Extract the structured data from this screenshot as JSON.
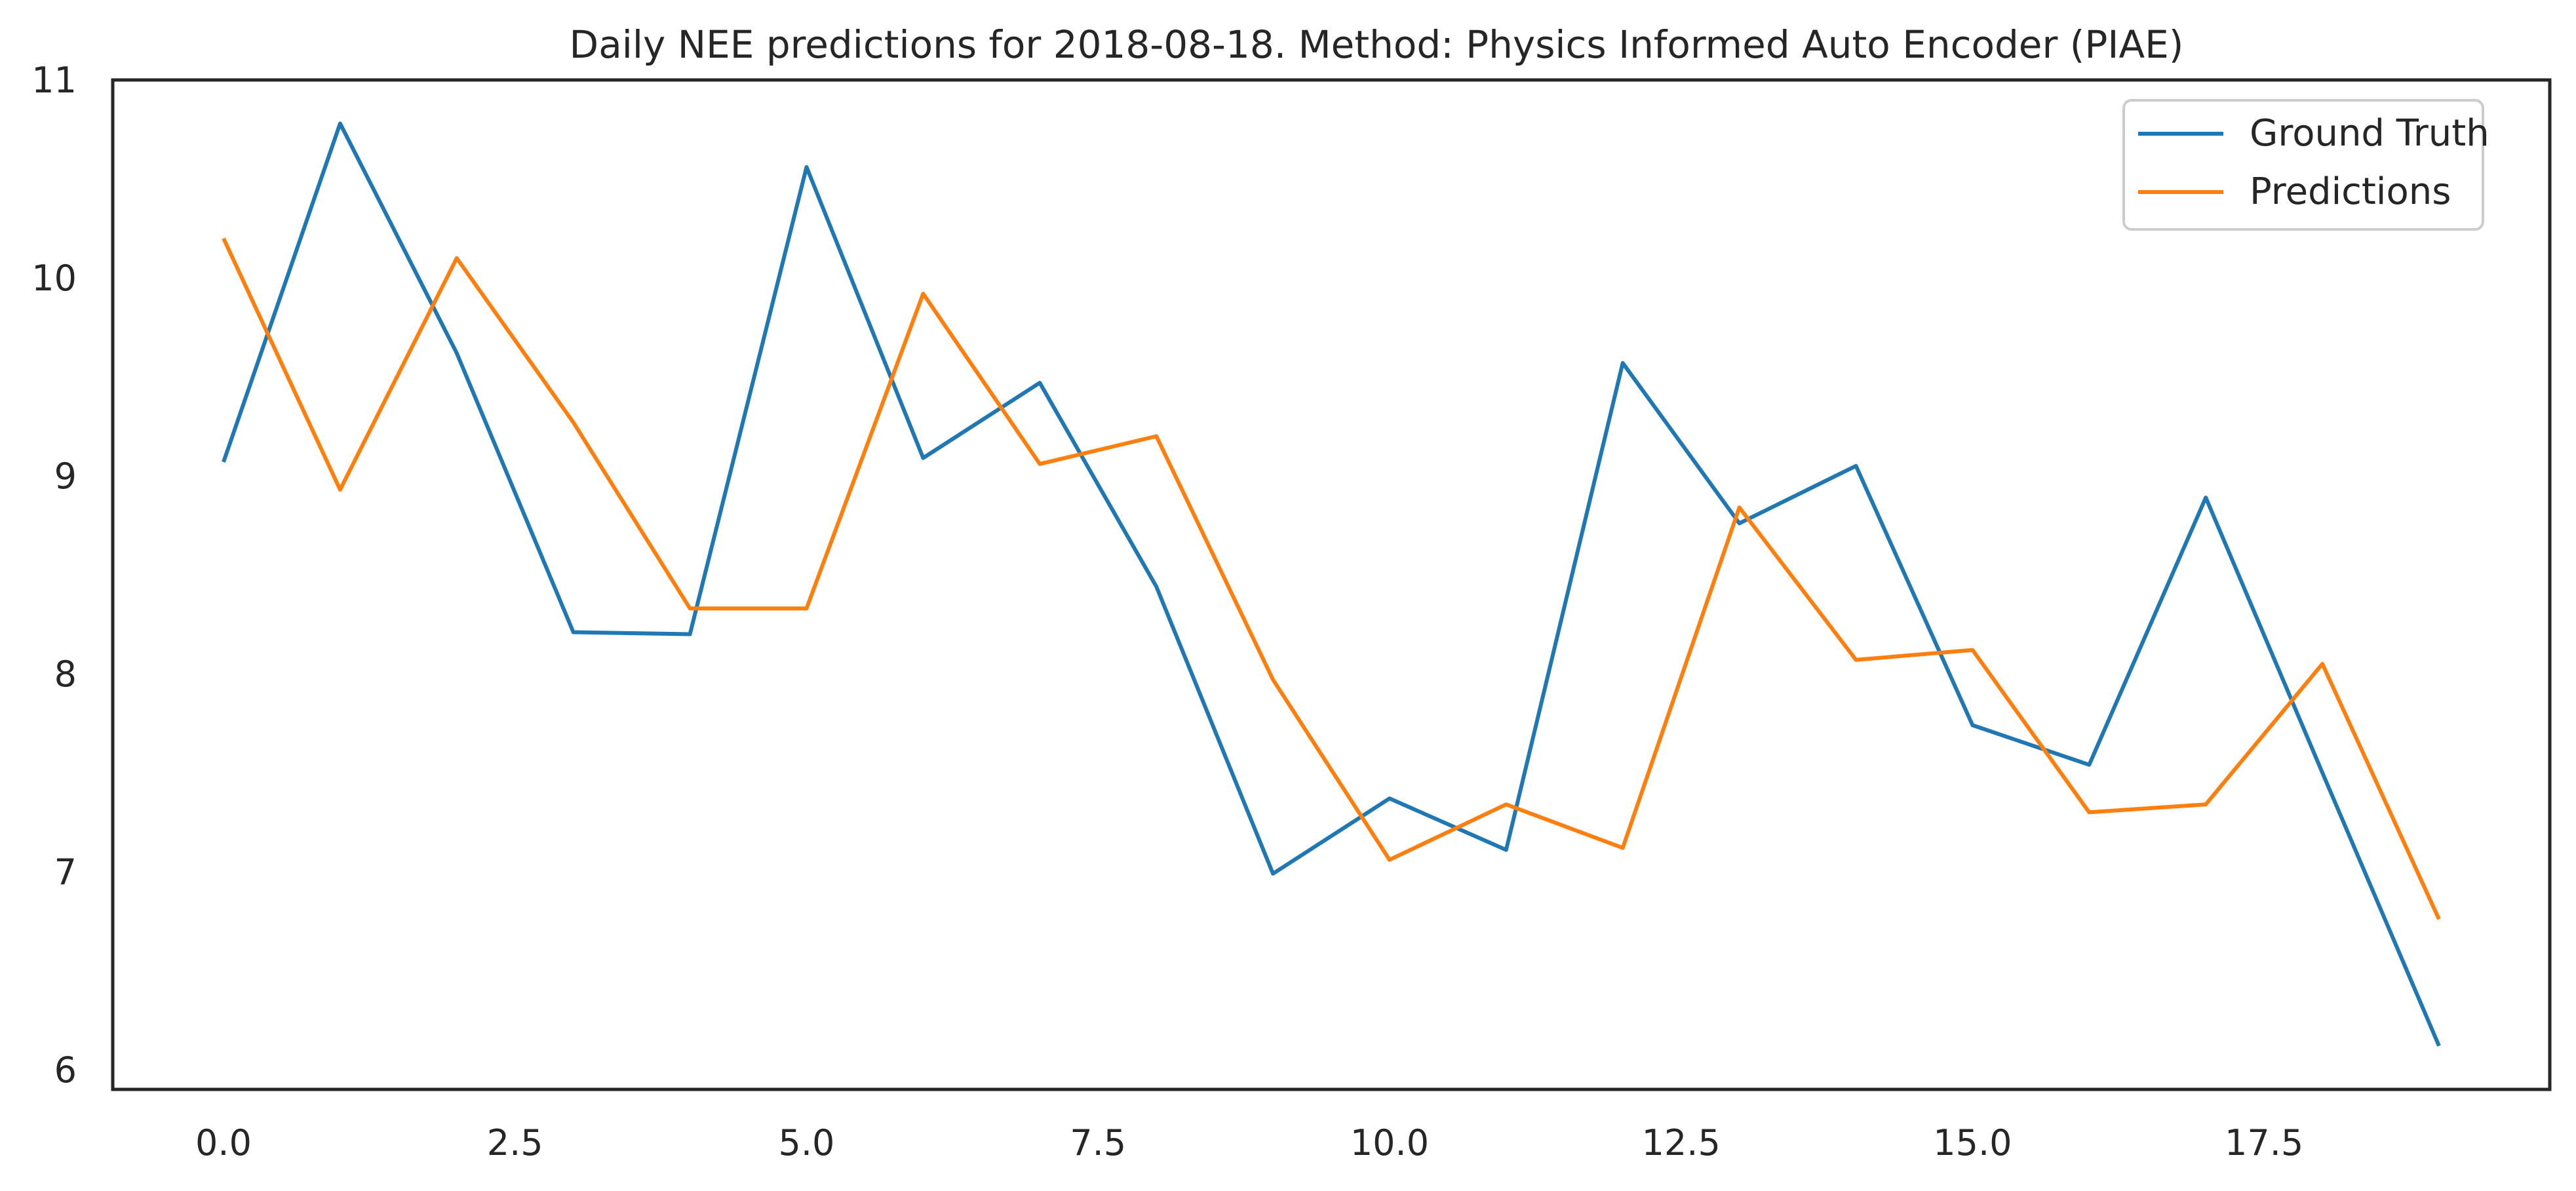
{
  "chart_data": {
    "type": "line",
    "title": "Daily NEE predictions for 2018-08-18. Method: Physics Informed Auto Encoder (PIAE)",
    "xlabel": "",
    "ylabel": "",
    "x": [
      0,
      1,
      2,
      3,
      4,
      5,
      6,
      7,
      8,
      9,
      10,
      11,
      12,
      13,
      14,
      15,
      16,
      17,
      18,
      19
    ],
    "xlim": [
      -0.95,
      19.95
    ],
    "ylim": [
      5.9,
      11.0
    ],
    "xticks": [
      0.0,
      2.5,
      5.0,
      7.5,
      10.0,
      12.5,
      15.0,
      17.5
    ],
    "xtick_labels": [
      "0.0",
      "2.5",
      "5.0",
      "7.5",
      "10.0",
      "12.5",
      "15.0",
      "17.5"
    ],
    "yticks": [
      6,
      7,
      8,
      9,
      10,
      11
    ],
    "ytick_labels": [
      "6",
      "7",
      "8",
      "9",
      "10",
      "11"
    ],
    "grid": false,
    "legend_position": "top-right",
    "series": [
      {
        "name": "Ground Truth",
        "color": "#1f77b4",
        "values": [
          9.07,
          10.78,
          9.62,
          8.21,
          8.2,
          10.56,
          9.09,
          9.47,
          8.44,
          6.99,
          7.37,
          7.11,
          9.57,
          8.76,
          9.05,
          7.74,
          7.54,
          8.89,
          7.5,
          6.12
        ]
      },
      {
        "name": "Predictions",
        "color": "#ff7f0e",
        "values": [
          10.2,
          8.93,
          10.1,
          9.27,
          8.33,
          8.33,
          9.92,
          9.06,
          9.2,
          7.97,
          7.06,
          7.34,
          7.12,
          8.84,
          8.07,
          8.12,
          7.3,
          7.34,
          8.05,
          6.76
        ]
      }
    ]
  }
}
